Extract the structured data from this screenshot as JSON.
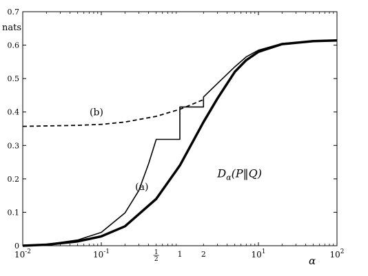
{
  "chart_data": {
    "type": "line",
    "title": "",
    "xlabel": "α",
    "ylabel": "nats",
    "xscale": "log",
    "xlim": [
      0.01,
      100
    ],
    "ylim": [
      0,
      0.7
    ],
    "grid": false,
    "x_ticks": [
      {
        "value": 0.01,
        "base": "10",
        "exp": "-2"
      },
      {
        "value": 0.1,
        "base": "10",
        "exp": "-1"
      },
      {
        "value": 10,
        "base": "10",
        "exp": "1"
      },
      {
        "value": 100,
        "base": "10",
        "exp": "2"
      }
    ],
    "extra_x_labels": [
      {
        "value": 0.5,
        "num": "1",
        "den": "2"
      },
      {
        "value": 1,
        "label": "1"
      },
      {
        "value": 2,
        "label": "2"
      }
    ],
    "y_ticks": [
      "0",
      "0.1",
      "0.2",
      "0.3",
      "0.4",
      "0.5",
      "0.6",
      "0.7"
    ],
    "series": [
      {
        "name": "D_α(P‖Q)",
        "style": "thick",
        "x": [
          0.01,
          0.02,
          0.05,
          0.1,
          0.2,
          0.5,
          1,
          2,
          3,
          5,
          7,
          10,
          20,
          50,
          100
        ],
        "y": [
          0.0,
          0.003,
          0.013,
          0.028,
          0.058,
          0.14,
          0.24,
          0.37,
          0.44,
          0.52,
          0.555,
          0.58,
          0.603,
          0.612,
          0.614
        ]
      },
      {
        "name": "(a)",
        "style": "thin",
        "x": [
          0.01,
          0.02,
          0.05,
          0.1,
          0.2,
          0.3,
          0.4,
          0.5,
          0.5,
          1,
          1,
          1.5,
          1.5,
          2,
          2,
          3,
          5,
          7,
          10,
          20,
          50,
          100
        ],
        "y": [
          0.0,
          0.004,
          0.017,
          0.04,
          0.098,
          0.165,
          0.245,
          0.318,
          0.318,
          0.318,
          0.415,
          0.415,
          0.415,
          0.415,
          0.445,
          0.485,
          0.535,
          0.565,
          0.585,
          0.605,
          0.612,
          0.614
        ]
      },
      {
        "name": "(b)",
        "style": "dashed",
        "x": [
          0.01,
          0.05,
          0.1,
          0.2,
          0.5,
          1,
          1.5,
          2
        ],
        "y": [
          0.357,
          0.36,
          0.363,
          0.37,
          0.387,
          0.408,
          0.425,
          0.437
        ]
      }
    ],
    "annotations": [
      {
        "text": "(b)",
        "x": 0.071,
        "y": 0.39
      },
      {
        "text": "(a)",
        "x": 0.27,
        "y": 0.167
      }
    ],
    "math_label": {
      "prefix": "D",
      "sub": "α",
      "rest": "(P‖Q)",
      "x": 3.0,
      "y": 0.205
    }
  }
}
